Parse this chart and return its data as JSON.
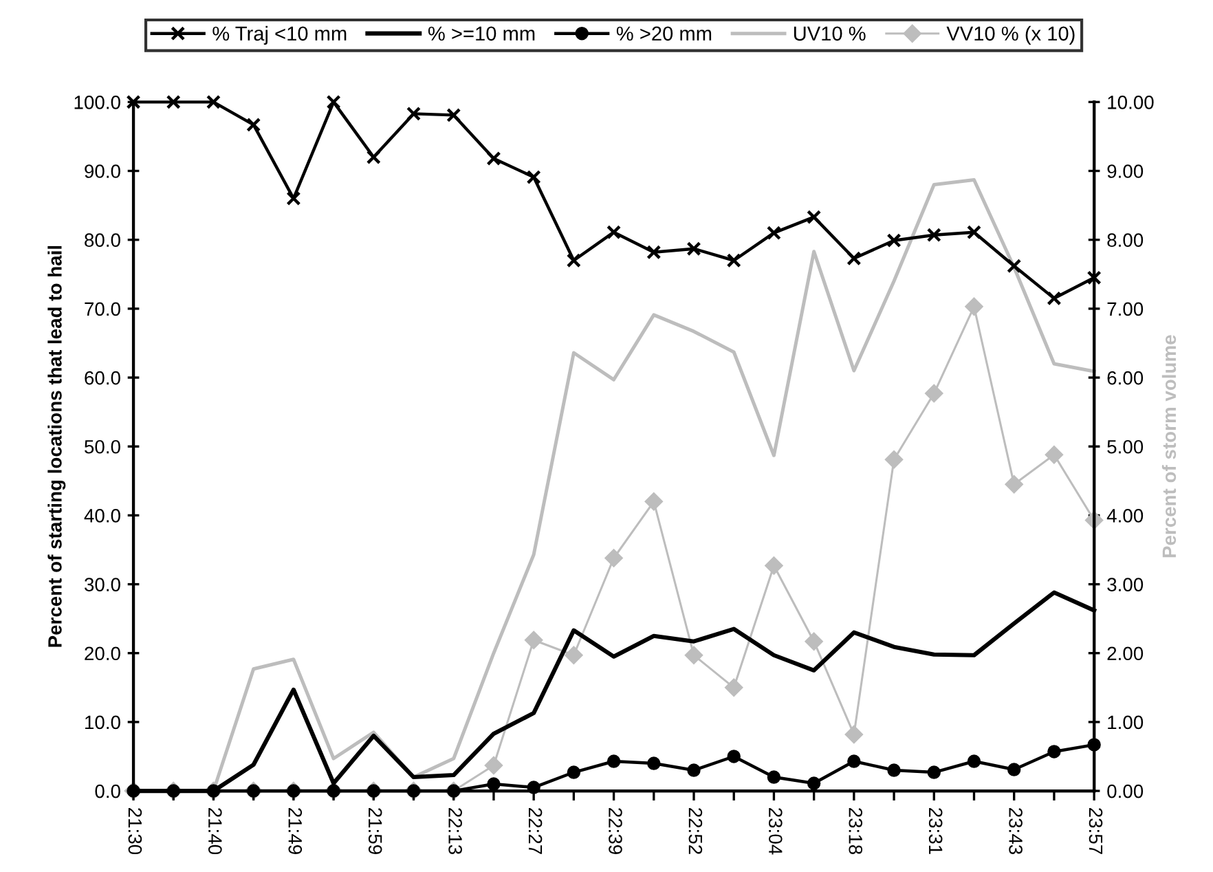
{
  "chart_data": {
    "type": "line",
    "categories": [
      "21:30",
      null,
      "21:40",
      null,
      "21:49",
      null,
      "21:59",
      null,
      "22:13",
      null,
      "22:27",
      null,
      "22:39",
      null,
      "22:52",
      null,
      "23:04",
      null,
      "23:18",
      null,
      "23:31",
      null,
      "23:43",
      null,
      "23:57"
    ],
    "ylabel": "Percent of starting locations that lead to hail",
    "y2label": "Percent of storm volume",
    "ylim": [
      0,
      100
    ],
    "yticks": [
      {
        "value": 0,
        "label": "0.0"
      },
      {
        "value": 10,
        "label": "10.0"
      },
      {
        "value": 20,
        "label": "20.0"
      },
      {
        "value": 30,
        "label": "30.0"
      },
      {
        "value": 40,
        "label": "40.0"
      },
      {
        "value": 50,
        "label": "50.0"
      },
      {
        "value": 60,
        "label": "60.0"
      },
      {
        "value": 70,
        "label": "70.0"
      },
      {
        "value": 80,
        "label": "80.0"
      },
      {
        "value": 90,
        "label": "90.0"
      },
      {
        "value": 100,
        "label": "100.0"
      }
    ],
    "y2lim": [
      0,
      10
    ],
    "y2ticks": [
      {
        "value": 0,
        "label": "0.00"
      },
      {
        "value": 1,
        "label": "1.00"
      },
      {
        "value": 2,
        "label": "2.00"
      },
      {
        "value": 3,
        "label": "3.00"
      },
      {
        "value": 4,
        "label": "4.00"
      },
      {
        "value": 5,
        "label": "5.00"
      },
      {
        "value": 6,
        "label": "6.00"
      },
      {
        "value": 7,
        "label": "7.00"
      },
      {
        "value": 8,
        "label": "8.00"
      },
      {
        "value": 9,
        "label": "9.00"
      },
      {
        "value": 10,
        "label": "10.00"
      }
    ],
    "grid": false,
    "legend": "top",
    "line_style": "solid",
    "series": [
      {
        "name": "% Traj <10 mm",
        "color": "#000000",
        "marker": "cross",
        "values": [
          100,
          100,
          100,
          96.7,
          86,
          100,
          92,
          98.3,
          98.1,
          91.8,
          89.1,
          77,
          81.1,
          78.2,
          78.7,
          77,
          81,
          83.3,
          77.3,
          79.9,
          80.7,
          81.1,
          76.2,
          71.5,
          74.5
        ]
      },
      {
        "name": "% >=10 mm",
        "color": "#000000",
        "marker": "none",
        "values": [
          0,
          0,
          0,
          3.8,
          14.7,
          1.1,
          8.0,
          2.0,
          2.3,
          8.3,
          11.3,
          23.3,
          19.5,
          22.5,
          21.7,
          23.5,
          19.7,
          17.5,
          23,
          20.9,
          19.8,
          19.7,
          24.3,
          28.8,
          26.2
        ]
      },
      {
        "name": "% >20 mm",
        "color": "#000000",
        "marker": "circle",
        "values": [
          0,
          0,
          0,
          0,
          0,
          0,
          0,
          0,
          0,
          1.0,
          0.5,
          2.7,
          4.3,
          4.0,
          3.0,
          5.0,
          2.0,
          1.1,
          4.3,
          3.0,
          2.7,
          4.3,
          3.1,
          5.7,
          6.7
        ]
      },
      {
        "name": "UV10 %",
        "color": "#bdbdbd",
        "marker": "none",
        "axis": "y2",
        "values": [
          0,
          0,
          0,
          1.77,
          1.91,
          0.47,
          0.85,
          0.2,
          0.47,
          2.0,
          3.43,
          6.36,
          5.97,
          6.91,
          6.67,
          6.37,
          4.87,
          7.83,
          6.1,
          7.4,
          8.8,
          8.87,
          7.6,
          6.2,
          6.09
        ]
      },
      {
        "name": "VV10 % (x 10)",
        "color": "#bdbdbd",
        "marker": "diamond",
        "axis": "y2",
        "values": [
          0,
          0,
          0,
          0,
          0,
          0,
          0,
          0,
          0,
          0.37,
          2.19,
          1.97,
          3.38,
          4.2,
          1.97,
          1.5,
          3.27,
          2.17,
          0.82,
          4.81,
          5.77,
          7.03,
          4.45,
          4.88,
          3.93
        ]
      }
    ]
  }
}
